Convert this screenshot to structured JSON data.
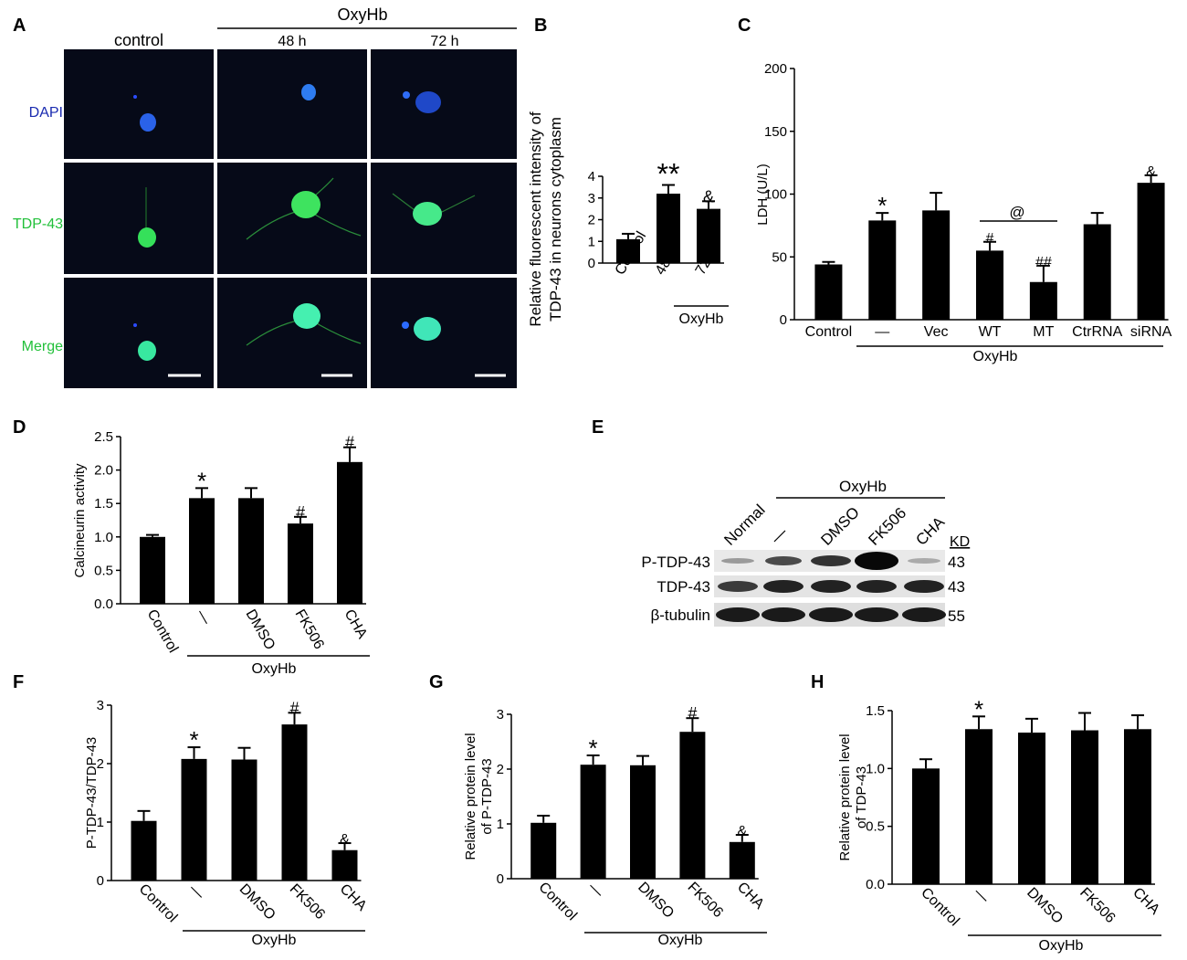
{
  "panels": {
    "A": {
      "letter": "A",
      "group_label": "OxyHb",
      "columns": [
        "control",
        "48 h",
        "72 h"
      ],
      "rows": [
        "DAPI",
        "TDP-43",
        "Merge"
      ],
      "row_colors": [
        "#1a2bb0",
        "#22c03a",
        "#22c03a"
      ]
    },
    "B": {
      "letter": "B",
      "group_label": "OxyHb"
    },
    "C": {
      "letter": "C",
      "group_label": "OxyHb",
      "bracket_marker": "@"
    },
    "D": {
      "letter": "D",
      "group_label": "OxyHb"
    },
    "E": {
      "letter": "E",
      "group_label": "OxyHb",
      "lanes": [
        "Normal",
        "—",
        "DMSO",
        "FK506",
        "CHA"
      ],
      "bands": [
        "P-TDP-43",
        "TDP-43",
        "β-tubulin"
      ],
      "kd_header": "KD",
      "kd_values": [
        "43",
        "43",
        "55"
      ]
    },
    "F": {
      "letter": "F",
      "group_label": "OxyHb"
    },
    "G": {
      "letter": "G",
      "group_label": "OxyHb"
    },
    "H": {
      "letter": "H",
      "group_label": "OxyHb"
    }
  },
  "chart_data": [
    {
      "panel": "B",
      "type": "bar",
      "ylabel_lines": [
        "Relative fluorescent  intensity of",
        "TDP-43 in neurons cytoplasm"
      ],
      "categories": [
        "Control",
        "48 h",
        "72 h"
      ],
      "values": [
        1.1,
        3.2,
        2.5
      ],
      "errors": [
        0.25,
        0.4,
        0.35
      ],
      "markers": [
        "",
        "**",
        "&"
      ],
      "ylim": [
        0,
        4
      ],
      "yticks": [
        "0",
        "1",
        "2",
        "3",
        "4"
      ]
    },
    {
      "panel": "C",
      "type": "bar",
      "ylabel_lines": [
        "LDH (U/L)"
      ],
      "categories": [
        "Control",
        "—",
        "Vec",
        "WT",
        "MT",
        "CtrRNA",
        "siRNA"
      ],
      "values": [
        44,
        79,
        87,
        55,
        30,
        76,
        109
      ],
      "errors": [
        2,
        6,
        14,
        7,
        13,
        9,
        6
      ],
      "markers": [
        "",
        "*",
        "",
        "#",
        "##",
        "",
        "&"
      ],
      "ylim": [
        0,
        200
      ],
      "yticks": [
        "0",
        "50",
        "100",
        "150",
        "200"
      ]
    },
    {
      "panel": "D",
      "type": "bar",
      "ylabel_lines": [
        "Calcineurin activity"
      ],
      "categories": [
        "Control",
        "—",
        "DMSO",
        "FK506",
        "CHA"
      ],
      "values": [
        1.0,
        1.58,
        1.58,
        1.2,
        2.12
      ],
      "errors": [
        0.03,
        0.15,
        0.15,
        0.1,
        0.22
      ],
      "markers": [
        "",
        "*",
        "",
        "#",
        "#"
      ],
      "ylim": [
        0,
        2.5
      ],
      "yticks": [
        "0.0",
        "0.5",
        "1.0",
        "1.5",
        "2.0",
        "2.5"
      ]
    },
    {
      "panel": "F",
      "type": "bar",
      "ylabel_lines": [
        "P-TDP-43/TDP-43"
      ],
      "categories": [
        "Control",
        "—",
        "DMSO",
        "FK506",
        "CHA"
      ],
      "values": [
        1.02,
        2.08,
        2.07,
        2.67,
        0.52
      ],
      "errors": [
        0.17,
        0.2,
        0.2,
        0.2,
        0.12
      ],
      "markers": [
        "",
        "*",
        "",
        "#",
        "&"
      ],
      "ylim": [
        0,
        3
      ],
      "yticks": [
        "0",
        "1",
        "2",
        "3"
      ]
    },
    {
      "panel": "G",
      "type": "bar",
      "ylabel_lines": [
        "Relative protein level",
        "of P-TDP-43"
      ],
      "categories": [
        "Control",
        "—",
        "DMSO",
        "FK506",
        "CHA"
      ],
      "values": [
        1.02,
        2.08,
        2.07,
        2.68,
        0.67
      ],
      "errors": [
        0.13,
        0.17,
        0.17,
        0.25,
        0.13
      ],
      "markers": [
        "",
        "*",
        "",
        "#",
        "&"
      ],
      "ylim": [
        0,
        3
      ],
      "yticks": [
        "0",
        "1",
        "2",
        "3"
      ]
    },
    {
      "panel": "H",
      "type": "bar",
      "ylabel_lines": [
        "Relative protein level",
        "of TDP-43"
      ],
      "categories": [
        "Control",
        "—",
        "DMSO",
        "FK506",
        "CHA"
      ],
      "values": [
        1.0,
        1.34,
        1.31,
        1.33,
        1.34
      ],
      "errors": [
        0.08,
        0.11,
        0.12,
        0.15,
        0.12
      ],
      "markers": [
        "",
        "*",
        "",
        "",
        ""
      ],
      "ylim": [
        0,
        1.5
      ],
      "yticks": [
        "0.0",
        "0.5",
        "1.0",
        "1.5"
      ]
    }
  ]
}
